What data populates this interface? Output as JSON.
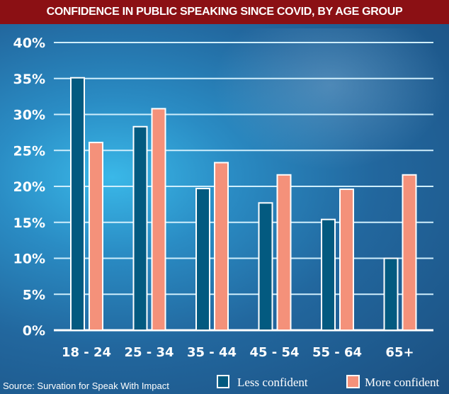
{
  "chart_data": {
    "type": "bar",
    "title": "CONFIDENCE IN PUBLIC SPEAKING SINCE COVID, BY AGE GROUP",
    "categories": [
      "18 - 24",
      "25 - 34",
      "35 - 44",
      "45 - 54",
      "55 - 64",
      "65+"
    ],
    "series": [
      {
        "name": "Less confident",
        "color": "#035a80",
        "values": [
          35.1,
          28.3,
          19.7,
          17.7,
          15.4,
          10
        ]
      },
      {
        "name": "More confident",
        "color": "#f4917a",
        "values": [
          26.1,
          30.8,
          23.3,
          21.6,
          19.6,
          21.6
        ]
      }
    ],
    "ylim": [
      0,
      40
    ],
    "yticks": [
      "0%",
      "5%",
      "10%",
      "15%",
      "20%",
      "25%",
      "30%",
      "35%",
      "40%"
    ],
    "grid": true,
    "legend_position": "bottom-right",
    "source": "Source: Survation for Speak With Impact",
    "xlabel": "",
    "ylabel": ""
  }
}
